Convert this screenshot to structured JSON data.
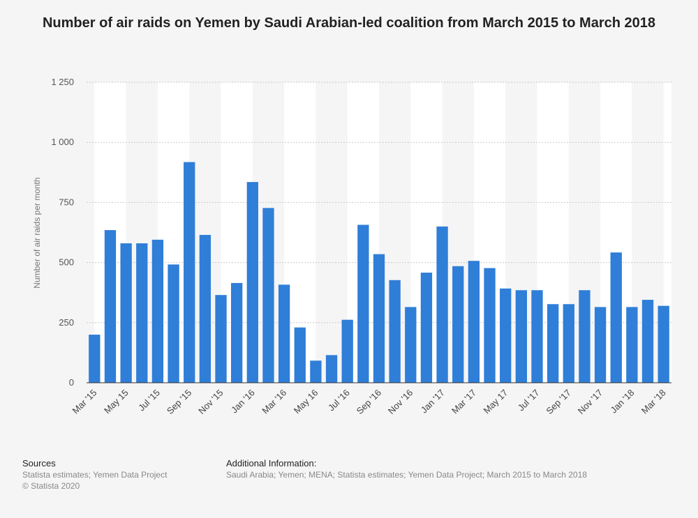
{
  "chart_data": {
    "type": "bar",
    "title": "Number of air raids on Yemen by Saudi Arabian-led coalition from March 2015 to March 2018",
    "xlabel": "",
    "ylabel": "Number of air raids per month",
    "ylim": [
      0,
      1250
    ],
    "yticks": [
      0,
      250,
      500,
      750,
      1000,
      1250
    ],
    "ytick_labels": [
      "0",
      "250",
      "500",
      "750",
      "1 000",
      "1 250"
    ],
    "grid": true,
    "bar_color": "#2f7ed8",
    "categories": [
      "Mar '15",
      "Apr '15",
      "May 15",
      "Jun '15",
      "Jul '15",
      "Aug '15",
      "Sep '15",
      "Oct '15",
      "Nov '15",
      "Dec '15",
      "Jan '16",
      "Feb '16",
      "Mar '16",
      "Apr '16",
      "May 16",
      "Jun '16",
      "Jul '16",
      "Aug '16",
      "Sep '16",
      "Oct '16",
      "Nov '16",
      "Dec '16",
      "Jan '17",
      "Feb '17",
      "Mar '17",
      "Apr '17",
      "May 17",
      "Jun '17",
      "Jul '17",
      "Aug '17",
      "Sep '17",
      "Oct '17",
      "Nov '17",
      "Dec '17",
      "Jan '18",
      "Feb '18",
      "Mar '18"
    ],
    "values": [
      200,
      635,
      580,
      580,
      595,
      492,
      918,
      615,
      365,
      415,
      835,
      727,
      408,
      230,
      92,
      115,
      262,
      657,
      535,
      427,
      315,
      458,
      650,
      485,
      507,
      477,
      392,
      385,
      385,
      327,
      327,
      385,
      315,
      542,
      315,
      345,
      320
    ],
    "x_tick_labels": [
      "Mar '15",
      "May 15",
      "Jul '15",
      "Sep '15",
      "Nov '15",
      "Jan '16",
      "Mar '16",
      "May 16",
      "Jul '16",
      "Sep '16",
      "Nov '16",
      "Jan '17",
      "Mar '17",
      "May 17",
      "Jul '17",
      "Sep '17",
      "Nov '17",
      "Jan '18",
      "Mar '18"
    ]
  },
  "footer": {
    "sources_heading": "Sources",
    "sources_line1": "Statista estimates; Yemen Data Project",
    "sources_line2": "© Statista 2020",
    "info_heading": "Additional Information:",
    "info_line1": "Saudi Arabia; Yemen; MENA; Statista estimates; Yemen Data Project; March 2015 to March 2018"
  }
}
